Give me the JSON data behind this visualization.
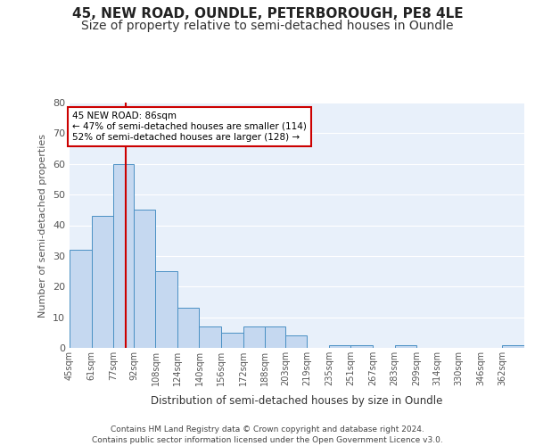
{
  "title": "45, NEW ROAD, OUNDLE, PETERBOROUGH, PE8 4LE",
  "subtitle": "Size of property relative to semi-detached houses in Oundle",
  "xlabel": "Distribution of semi-detached houses by size in Oundle",
  "ylabel": "Number of semi-detached properties",
  "footer_line1": "Contains HM Land Registry data © Crown copyright and database right 2024.",
  "footer_line2": "Contains public sector information licensed under the Open Government Licence v3.0.",
  "annotation_line1": "45 NEW ROAD: 86sqm",
  "annotation_line2": "← 47% of semi-detached houses are smaller (114)",
  "annotation_line3": "52% of semi-detached houses are larger (128) →",
  "bar_labels": [
    "45sqm",
    "61sqm",
    "77sqm",
    "92sqm",
    "108sqm",
    "124sqm",
    "140sqm",
    "156sqm",
    "172sqm",
    "188sqm",
    "203sqm",
    "219sqm",
    "235sqm",
    "251sqm",
    "267sqm",
    "283sqm",
    "299sqm",
    "314sqm",
    "330sqm",
    "346sqm",
    "362sqm"
  ],
  "bar_values": [
    32,
    43,
    60,
    45,
    25,
    13,
    7,
    5,
    7,
    7,
    4,
    0,
    1,
    1,
    0,
    1,
    0,
    0,
    0,
    0,
    1
  ],
  "bar_edges": [
    45,
    61,
    77,
    92,
    108,
    124,
    140,
    156,
    172,
    188,
    203,
    219,
    235,
    251,
    267,
    283,
    299,
    314,
    330,
    346,
    362,
    378
  ],
  "bar_color": "#c5d8f0",
  "bar_edge_color": "#4a90c4",
  "vline_color": "#cc0000",
  "vline_x": 86,
  "ylim": [
    0,
    80
  ],
  "yticks": [
    0,
    10,
    20,
    30,
    40,
    50,
    60,
    70,
    80
  ],
  "bg_color": "#e8f0fa",
  "grid_color": "#ffffff",
  "title_fontsize": 11,
  "subtitle_fontsize": 10,
  "annotation_box_edge_color": "#cc0000",
  "annotation_box_fill": "#ffffff"
}
